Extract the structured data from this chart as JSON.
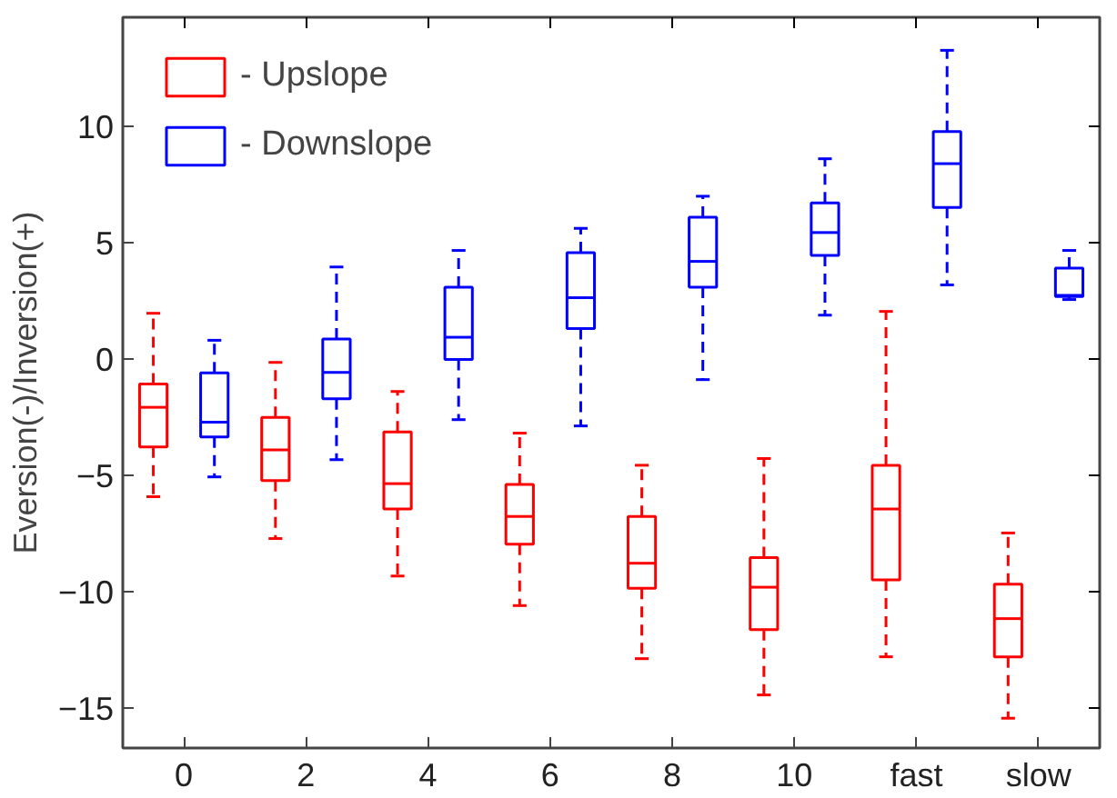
{
  "chart_data": {
    "type": "box",
    "ylabel": "Eversion(-)/Inversion(+)",
    "categories": [
      "0",
      "2",
      "4",
      "6",
      "8",
      "10",
      "fast",
      "slow"
    ],
    "ylim": [
      -16.7,
      14.7
    ],
    "yticks": [
      -15,
      -10,
      -5,
      0,
      5,
      10
    ],
    "grid": false,
    "legend": "top left",
    "line_style": "dashed",
    "series": [
      {
        "name": "- Upslope",
        "color": "#ff0000",
        "boxes": [
          {
            "low": -5.9,
            "q1": -3.76,
            "median": -2.06,
            "q3": -1.06,
            "high": 1.98
          },
          {
            "low": -7.7,
            "q1": -5.21,
            "median": -3.89,
            "q3": -2.49,
            "high": -0.13
          },
          {
            "low": -9.31,
            "q1": -6.43,
            "median": -5.34,
            "q3": -3.12,
            "high": -1.38
          },
          {
            "low": -10.58,
            "q1": -7.94,
            "median": -6.75,
            "q3": -5.37,
            "high": -3.17
          },
          {
            "low": -12.86,
            "q1": -9.84,
            "median": -8.76,
            "q3": -6.75,
            "high": -4.55
          },
          {
            "low": -14.42,
            "q1": -11.61,
            "median": -9.79,
            "q3": -8.52,
            "high": -4.26
          },
          {
            "low": -12.78,
            "q1": -9.47,
            "median": -6.43,
            "q3": -4.55,
            "high": 2.06
          },
          {
            "low": -15.42,
            "q1": -12.78,
            "median": -11.14,
            "q3": -9.66,
            "high": -7.46
          }
        ]
      },
      {
        "name": "- Downslope",
        "color": "#0000ff",
        "boxes": [
          {
            "low": -5.05,
            "q1": -3.33,
            "median": -2.7,
            "q3": -0.58,
            "high": 0.82
          },
          {
            "low": -4.31,
            "q1": -1.69,
            "median": -0.56,
            "q3": 0.87,
            "high": 3.97
          },
          {
            "low": -2.59,
            "q1": 0.0,
            "median": 0.95,
            "q3": 3.1,
            "high": 4.68
          },
          {
            "low": -2.86,
            "q1": 1.32,
            "median": 2.65,
            "q3": 4.58,
            "high": 5.63
          },
          {
            "low": -0.87,
            "q1": 3.1,
            "median": 4.21,
            "q3": 6.11,
            "high": 7.01
          },
          {
            "low": 1.9,
            "q1": 4.47,
            "median": 5.45,
            "q3": 6.72,
            "high": 8.62
          },
          {
            "low": 3.2,
            "q1": 6.53,
            "median": 8.41,
            "q3": 9.79,
            "high": 13.28
          },
          {
            "low": 2.57,
            "q1": 2.7,
            "median": 2.75,
            "q3": 3.92,
            "high": 4.68
          }
        ]
      }
    ]
  }
}
